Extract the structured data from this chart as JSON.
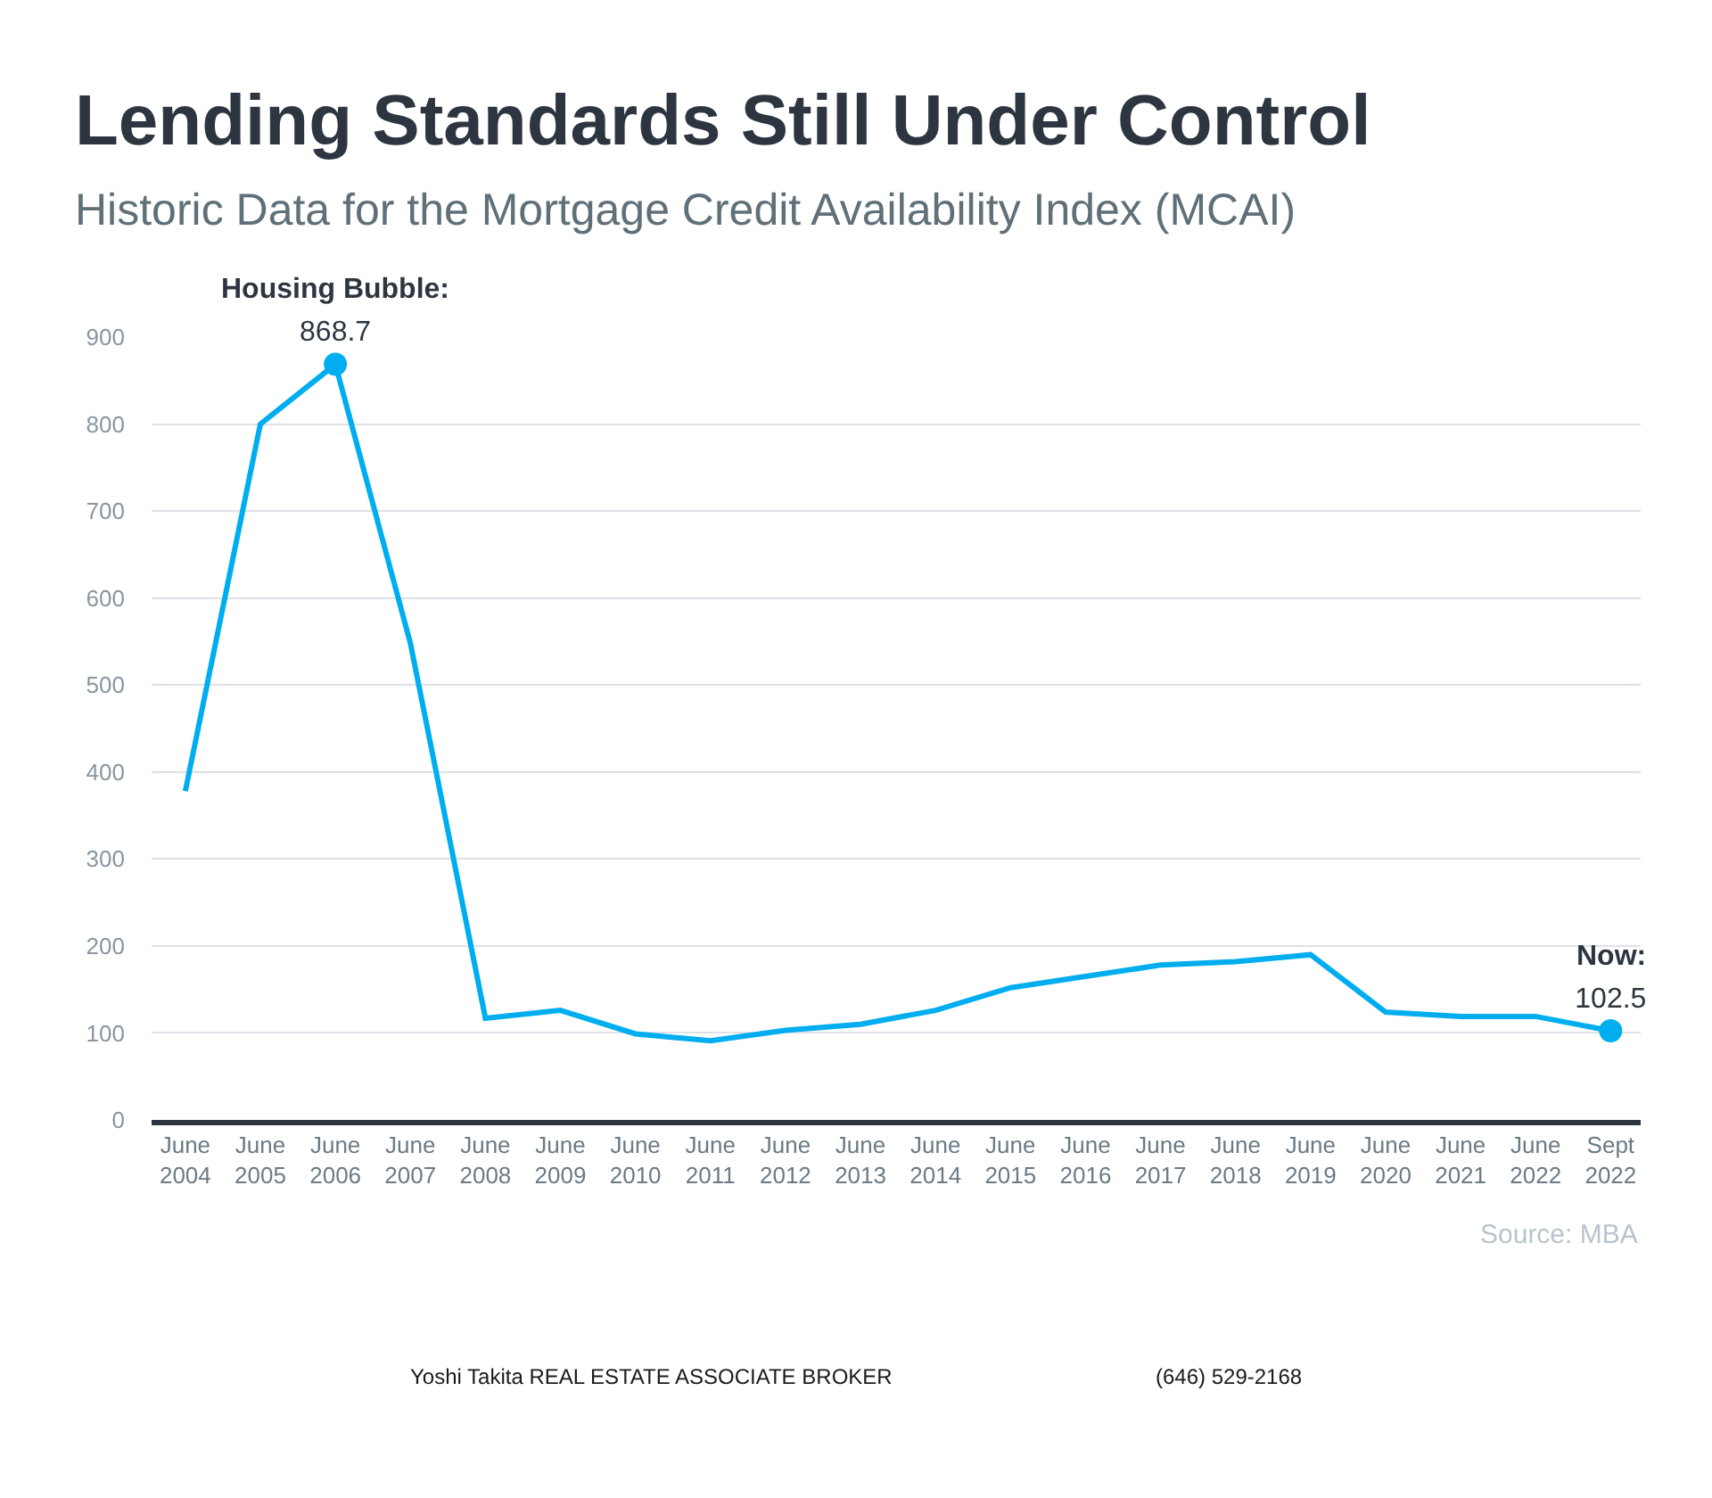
{
  "chart_data": {
    "type": "line",
    "title": "Lending Standards Still Under Control",
    "subtitle": "Historic Data for the Mortgage Credit Availability Index (MCAI)",
    "categories": [
      "June 2004",
      "June 2005",
      "June 2006",
      "June 2007",
      "June 2008",
      "June 2009",
      "June 2010",
      "June 2011",
      "June 2012",
      "June 2013",
      "June 2014",
      "June 2015",
      "June 2016",
      "June 2017",
      "June 2018",
      "June 2019",
      "June 2020",
      "June 2021",
      "June 2022",
      "Sept 2022"
    ],
    "series": [
      {
        "color": "#00aeef",
        "values": [
          378,
          800,
          868.7,
          548,
          117,
          126,
          99,
          91,
          103,
          110,
          126,
          152,
          165,
          178,
          182,
          190,
          124,
          119,
          119,
          102.5
        ],
        "value_labels": [
          null,
          null,
          "868.7",
          null,
          null,
          null,
          null,
          null,
          null,
          null,
          null,
          null,
          null,
          null,
          null,
          null,
          null,
          null,
          null,
          "102.5"
        ]
      }
    ],
    "ylim": [
      0,
      900
    ],
    "yticks": [
      0,
      100,
      200,
      300,
      400,
      500,
      600,
      700,
      800,
      900
    ],
    "grid": "y",
    "legend": false,
    "line_style": "solid",
    "annotations": [
      {
        "text": "Housing Bubble:",
        "x": "June 2006",
        "y": 868.7
      },
      {
        "text": "Now:",
        "x": "Sept 2022",
        "y": 102.5
      },
      "Source: MBA",
      "Yoshi Takita REAL ESTATE ASSOCIATE BROKER",
      "(646) 529-2168"
    ]
  }
}
